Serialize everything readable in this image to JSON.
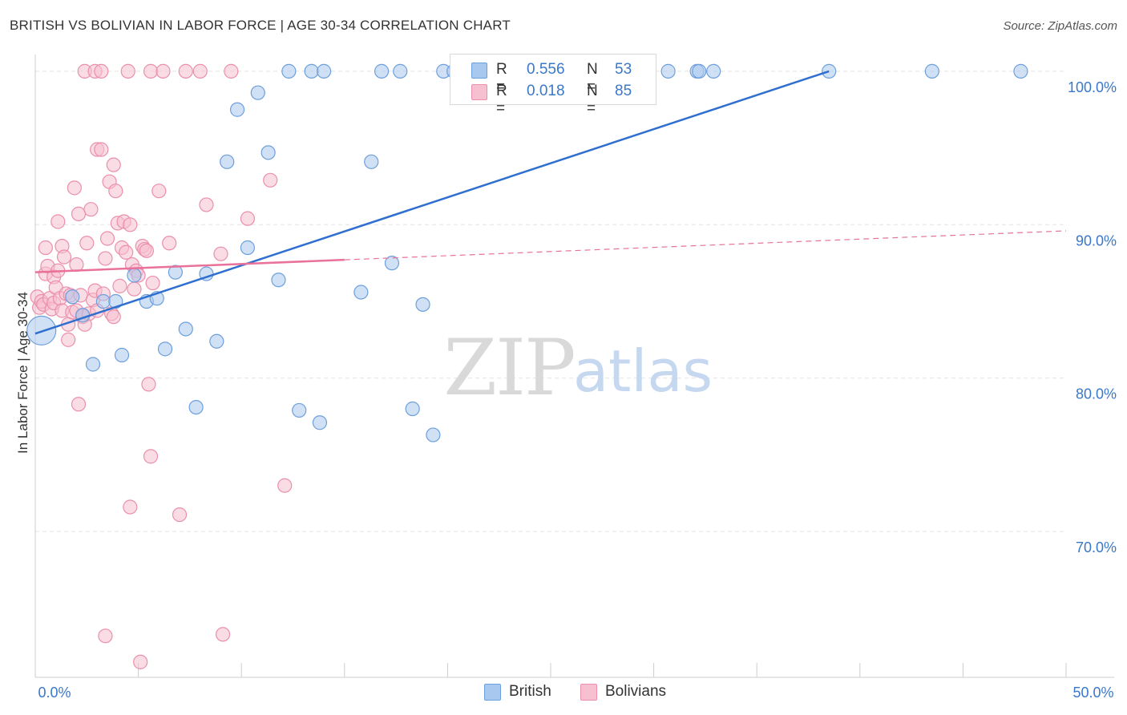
{
  "header": {
    "title": "BRITISH VS BOLIVIAN IN LABOR FORCE | AGE 30-34 CORRELATION CHART",
    "source": "Source: ZipAtlas.com"
  },
  "watermark": {
    "zip": "ZIP",
    "atlas": "atlas"
  },
  "legend": {
    "british": {
      "r_label": "R =",
      "r_value": "0.556",
      "n_label": "N =",
      "n_value": "53"
    },
    "bolivians": {
      "r_label": "R =",
      "r_value": "0.018",
      "n_label": "N =",
      "n_value": "85"
    }
  },
  "bottom_legend": {
    "british_label": "British",
    "bolivians_label": "Bolivians"
  },
  "colors": {
    "british_fill": "#a9c8ef",
    "british_stroke": "#6d9fdc",
    "british_line": "#2f6fcf",
    "bolivians_fill": "#f6c0d0",
    "bolivians_stroke": "#eb8fab",
    "bolivians_line": "#e8729a",
    "axis_label": "#3a78c9",
    "grid": "#e3e3e3"
  },
  "chart_data": {
    "type": "scatter",
    "title": "BRITISH VS BOLIVIAN IN LABOR FORCE | AGE 30-34 CORRELATION CHART",
    "xlabel": "",
    "ylabel": "In Labor Force | Age 30-34",
    "xlim": [
      0,
      50
    ],
    "ylim": [
      60.5,
      101.3
    ],
    "x_tick_labels": [
      {
        "value": 0,
        "label": "0.0%"
      },
      {
        "value": 50,
        "label": "50.0%"
      }
    ],
    "y_tick_labels": [
      {
        "value": 70,
        "label": "70.0%"
      },
      {
        "value": 80,
        "label": "80.0%"
      },
      {
        "value": 90,
        "label": "90.0%"
      },
      {
        "value": 100,
        "label": "100.0%"
      }
    ],
    "series": [
      {
        "name": "British",
        "r": 0.556,
        "n": 53,
        "trend": {
          "x": [
            0,
            38.5
          ],
          "y": [
            82.9,
            100.0
          ]
        },
        "points": [
          [
            0.3,
            83.1
          ],
          [
            1.8,
            85.3
          ],
          [
            2.3,
            84.1
          ],
          [
            2.8,
            80.9
          ],
          [
            3.3,
            85.0
          ],
          [
            3.9,
            85.0
          ],
          [
            4.2,
            81.5
          ],
          [
            4.8,
            86.7
          ],
          [
            5.4,
            85.0
          ],
          [
            5.9,
            85.2
          ],
          [
            6.3,
            81.9
          ],
          [
            6.8,
            86.9
          ],
          [
            7.3,
            83.2
          ],
          [
            7.8,
            78.1
          ],
          [
            8.3,
            86.8
          ],
          [
            8.8,
            82.4
          ],
          [
            9.3,
            94.1
          ],
          [
            9.8,
            97.5
          ],
          [
            10.3,
            88.5
          ],
          [
            10.8,
            98.6
          ],
          [
            11.3,
            94.7
          ],
          [
            11.8,
            86.4
          ],
          [
            12.3,
            100.0
          ],
          [
            12.8,
            77.9
          ],
          [
            13.4,
            100.0
          ],
          [
            13.8,
            77.1
          ],
          [
            14.0,
            100.0
          ],
          [
            15.8,
            85.6
          ],
          [
            16.3,
            94.1
          ],
          [
            16.8,
            100.0
          ],
          [
            17.3,
            87.5
          ],
          [
            17.7,
            100.0
          ],
          [
            18.3,
            78.0
          ],
          [
            18.8,
            84.8
          ],
          [
            19.3,
            76.3
          ],
          [
            19.8,
            100.0
          ],
          [
            20.3,
            100.0
          ],
          [
            21.4,
            100.0
          ],
          [
            22.3,
            100.0
          ],
          [
            22.8,
            100.0
          ],
          [
            23.3,
            100.0
          ],
          [
            24.0,
            100.0
          ],
          [
            24.3,
            100.0
          ],
          [
            25.0,
            100.0
          ],
          [
            27.0,
            100.0
          ],
          [
            28.4,
            100.0
          ],
          [
            30.7,
            100.0
          ],
          [
            32.1,
            100.0
          ],
          [
            32.2,
            100.0
          ],
          [
            32.9,
            100.0
          ],
          [
            38.5,
            100.0
          ],
          [
            43.5,
            100.0
          ],
          [
            47.8,
            100.0
          ]
        ]
      },
      {
        "name": "Bolivians",
        "r": 0.018,
        "n": 85,
        "trend": {
          "x": [
            0,
            50
          ],
          "y": [
            86.9,
            89.6
          ]
        },
        "trend_solid_until_x": 15,
        "points": [
          [
            0.1,
            85.3
          ],
          [
            0.2,
            84.6
          ],
          [
            0.3,
            85.0
          ],
          [
            0.4,
            84.8
          ],
          [
            0.5,
            86.8
          ],
          [
            0.5,
            88.5
          ],
          [
            0.6,
            87.3
          ],
          [
            0.7,
            85.2
          ],
          [
            0.8,
            84.5
          ],
          [
            0.9,
            86.6
          ],
          [
            0.9,
            84.9
          ],
          [
            1.0,
            85.9
          ],
          [
            1.1,
            87.0
          ],
          [
            1.1,
            90.2
          ],
          [
            1.2,
            85.2
          ],
          [
            1.3,
            88.6
          ],
          [
            1.3,
            84.4
          ],
          [
            1.4,
            87.9
          ],
          [
            1.5,
            85.5
          ],
          [
            1.6,
            83.5
          ],
          [
            1.6,
            82.5
          ],
          [
            1.7,
            85.4
          ],
          [
            1.8,
            84.3
          ],
          [
            1.9,
            92.4
          ],
          [
            2.0,
            84.4
          ],
          [
            2.0,
            87.4
          ],
          [
            2.1,
            90.7
          ],
          [
            2.1,
            78.3
          ],
          [
            2.2,
            85.4
          ],
          [
            2.3,
            84.0
          ],
          [
            2.3,
            84.1
          ],
          [
            2.4,
            83.5
          ],
          [
            2.5,
            88.8
          ],
          [
            2.6,
            84.2
          ],
          [
            2.7,
            91.0
          ],
          [
            2.8,
            85.1
          ],
          [
            2.9,
            85.7
          ],
          [
            3.0,
            94.9
          ],
          [
            3.0,
            84.4
          ],
          [
            3.2,
            94.9
          ],
          [
            3.3,
            85.5
          ],
          [
            3.4,
            87.8
          ],
          [
            3.5,
            89.1
          ],
          [
            3.6,
            92.8
          ],
          [
            3.7,
            84.2
          ],
          [
            3.8,
            84.0
          ],
          [
            3.9,
            92.2
          ],
          [
            4.0,
            90.1
          ],
          [
            4.1,
            86.0
          ],
          [
            4.2,
            88.5
          ],
          [
            4.3,
            90.2
          ],
          [
            4.4,
            88.2
          ],
          [
            4.6,
            90.0
          ],
          [
            4.7,
            87.4
          ],
          [
            4.8,
            85.8
          ],
          [
            4.9,
            87.0
          ],
          [
            5.0,
            86.7
          ],
          [
            5.2,
            88.6
          ],
          [
            5.3,
            88.4
          ],
          [
            5.4,
            88.3
          ],
          [
            5.5,
            79.6
          ],
          [
            5.6,
            74.9
          ],
          [
            5.7,
            86.2
          ],
          [
            6.0,
            92.2
          ],
          [
            6.5,
            88.8
          ],
          [
            7.0,
            71.1
          ],
          [
            7.3,
            100.0
          ],
          [
            8.3,
            91.3
          ],
          [
            9.0,
            88.1
          ],
          [
            9.5,
            100.0
          ],
          [
            10.3,
            90.4
          ],
          [
            11.4,
            92.9
          ],
          [
            12.1,
            73.0
          ],
          [
            2.4,
            100.0
          ],
          [
            2.9,
            100.0
          ],
          [
            3.2,
            100.0
          ],
          [
            3.4,
            63.2
          ],
          [
            3.8,
            93.9
          ],
          [
            4.6,
            71.6
          ],
          [
            5.1,
            61.5
          ],
          [
            5.6,
            100.0
          ],
          [
            4.5,
            100.0
          ],
          [
            6.2,
            100.0
          ],
          [
            8.0,
            100.0
          ],
          [
            9.1,
            63.3
          ]
        ]
      }
    ],
    "bubble_size_note": "one large British point at x=0.3"
  }
}
